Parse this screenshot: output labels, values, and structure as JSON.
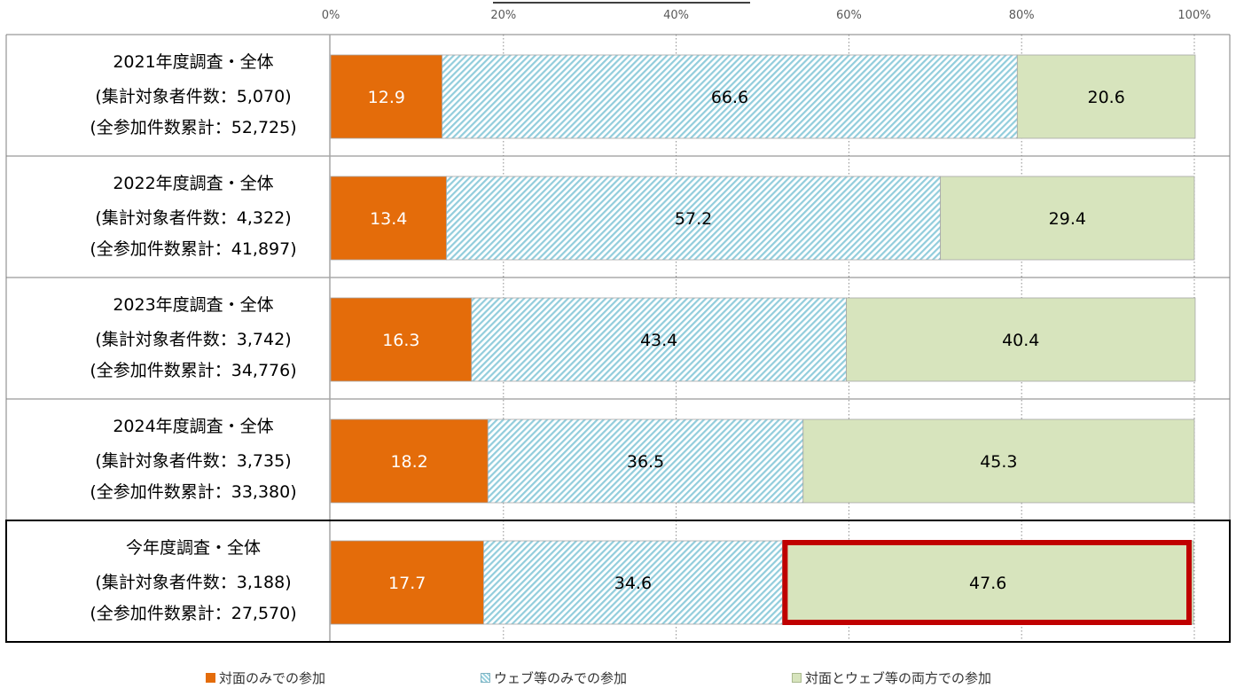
{
  "chart_data": {
    "type": "bar",
    "orientation": "horizontal",
    "stacked": true,
    "x_ticks": [
      "0%",
      "20%",
      "40%",
      "60%",
      "80%",
      "100%"
    ],
    "xlim": [
      0,
      100
    ],
    "grid": true,
    "legend_position": "bottom",
    "categories": [
      [
        "2021年度調査・全体",
        "(集計対象者件数：5,070)",
        "(全参加件数累計：52,725)"
      ],
      [
        "2022年度調査・全体",
        "(集計対象者件数：4,322)",
        "(全参加件数累計：41,897)"
      ],
      [
        "2023年度調査・全体",
        "(集計対象者件数：3,742)",
        "(全参加件数累計：34,776)"
      ],
      [
        "2024年度調査・全体",
        "(集計対象者件数：3,735)",
        "(全参加件数累計：33,380)"
      ],
      [
        "今年度調査・全体",
        "(集計対象者件数：3,188)",
        "(全参加件数累計：27,570)"
      ]
    ],
    "series": [
      {
        "name": "対面のみでの参加",
        "values": [
          12.9,
          13.4,
          16.3,
          18.2,
          17.7
        ],
        "color": "#E46C0A",
        "pattern": "solid",
        "label_color": "#ffffff"
      },
      {
        "name": "ウェブ等のみでの参加",
        "values": [
          66.6,
          57.2,
          43.4,
          36.5,
          34.6
        ],
        "color": "#92CDDC",
        "pattern": "diagonal-stripes",
        "label_color": "#000000"
      },
      {
        "name": "対面とウェブ等の両方での参加",
        "values": [
          20.6,
          29.4,
          40.4,
          45.3,
          47.6
        ],
        "color": "#D7E4BD",
        "pattern": "solid",
        "label_color": "#000000"
      }
    ],
    "highlight": {
      "category_index": 4,
      "series_index": 2,
      "color": "#C00000"
    },
    "highlight_row_index": 4
  }
}
